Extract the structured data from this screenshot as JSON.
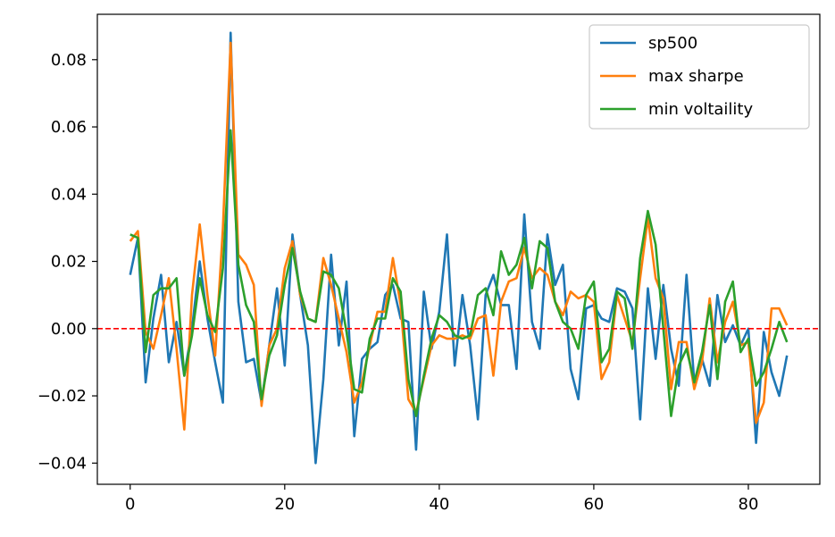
{
  "chart_data": {
    "type": "line",
    "title": "",
    "xlabel": "",
    "ylabel": "",
    "xlim": [
      -4.25,
      89.25
    ],
    "ylim": [
      -0.0463,
      0.0935
    ],
    "xticks": [
      0,
      20,
      40,
      60,
      80
    ],
    "xtick_labels": [
      "0",
      "20",
      "40",
      "60",
      "80"
    ],
    "yticks": [
      -0.04,
      -0.02,
      0.0,
      0.02,
      0.04,
      0.06,
      0.08
    ],
    "ytick_labels": [
      "−0.04",
      "−0.02",
      "0.00",
      "0.02",
      "0.04",
      "0.06",
      "0.08"
    ],
    "grid": false,
    "legend_position": "top-right",
    "reference_line": {
      "y": 0.0,
      "color": "#ff0000",
      "style": "dashed"
    },
    "series": [
      {
        "name": "sp500",
        "color": "#1f77b4",
        "values": [
          0.016,
          0.027,
          -0.016,
          0.003,
          0.016,
          -0.01,
          0.002,
          -0.014,
          0.0,
          0.02,
          0.003,
          -0.01,
          -0.022,
          0.088,
          0.008,
          -0.01,
          -0.009,
          -0.022,
          -0.005,
          0.012,
          -0.011,
          0.028,
          0.01,
          -0.005,
          -0.04,
          -0.015,
          0.022,
          -0.005,
          0.014,
          -0.032,
          -0.009,
          -0.006,
          -0.004,
          0.01,
          0.013,
          0.003,
          0.002,
          -0.036,
          0.011,
          -0.006,
          0.005,
          0.028,
          -0.011,
          0.01,
          -0.005,
          -0.027,
          0.01,
          0.016,
          0.007,
          0.007,
          -0.012,
          0.034,
          0.002,
          -0.006,
          0.028,
          0.013,
          0.019,
          -0.012,
          -0.021,
          0.006,
          0.007,
          0.003,
          0.002,
          0.012,
          0.011,
          0.006,
          -0.027,
          0.012,
          -0.009,
          0.013,
          -0.006,
          -0.017,
          0.016,
          -0.016,
          -0.009,
          -0.017,
          0.01,
          -0.004,
          0.001,
          -0.005,
          0.0,
          -0.034,
          -0.001,
          -0.013,
          -0.02,
          -0.008
        ]
      },
      {
        "name": "max sharpe",
        "color": "#ff7f0e",
        "values": [
          0.026,
          0.029,
          -0.001,
          -0.006,
          0.004,
          0.015,
          -0.006,
          -0.03,
          0.01,
          0.031,
          0.01,
          -0.008,
          0.03,
          0.085,
          0.022,
          0.019,
          0.013,
          -0.023,
          -0.005,
          0.0,
          0.018,
          0.026,
          0.01,
          0.003,
          0.002,
          0.021,
          0.013,
          0.003,
          -0.007,
          -0.022,
          -0.016,
          -0.005,
          0.005,
          0.005,
          0.021,
          0.007,
          -0.021,
          -0.025,
          -0.015,
          -0.005,
          -0.002,
          -0.003,
          -0.003,
          -0.002,
          -0.003,
          0.003,
          0.004,
          -0.014,
          0.008,
          0.014,
          0.015,
          0.024,
          0.015,
          0.018,
          0.016,
          0.008,
          0.004,
          0.011,
          0.009,
          0.01,
          0.008,
          -0.015,
          -0.01,
          0.01,
          0.003,
          -0.004,
          0.015,
          0.033,
          0.015,
          0.009,
          -0.018,
          -0.004,
          -0.004,
          -0.018,
          -0.01,
          0.009,
          -0.01,
          0.002,
          0.008,
          -0.005,
          -0.004,
          -0.028,
          -0.022,
          0.006,
          0.006,
          0.001
        ]
      },
      {
        "name": "min voltaility",
        "color": "#2ca02c",
        "values": [
          0.028,
          0.027,
          -0.007,
          0.01,
          0.012,
          0.012,
          0.015,
          -0.014,
          -0.002,
          0.015,
          0.004,
          -0.001,
          0.018,
          0.059,
          0.019,
          0.007,
          0.002,
          -0.021,
          -0.008,
          -0.002,
          0.013,
          0.024,
          0.011,
          0.003,
          0.002,
          0.017,
          0.016,
          0.012,
          -0.001,
          -0.018,
          -0.019,
          -0.003,
          0.003,
          0.003,
          0.015,
          0.011,
          -0.015,
          -0.026,
          -0.014,
          -0.003,
          0.004,
          0.002,
          -0.002,
          -0.003,
          -0.002,
          0.01,
          0.012,
          0.004,
          0.023,
          0.016,
          0.019,
          0.027,
          0.012,
          0.026,
          0.024,
          0.008,
          0.002,
          0.0,
          -0.006,
          0.01,
          0.014,
          -0.01,
          -0.006,
          0.011,
          0.009,
          -0.006,
          0.021,
          0.035,
          0.025,
          0.0,
          -0.026,
          -0.011,
          -0.006,
          -0.016,
          -0.007,
          0.007,
          -0.015,
          0.008,
          0.014,
          -0.007,
          -0.003,
          -0.017,
          -0.013,
          -0.006,
          0.002,
          -0.004
        ]
      }
    ]
  }
}
